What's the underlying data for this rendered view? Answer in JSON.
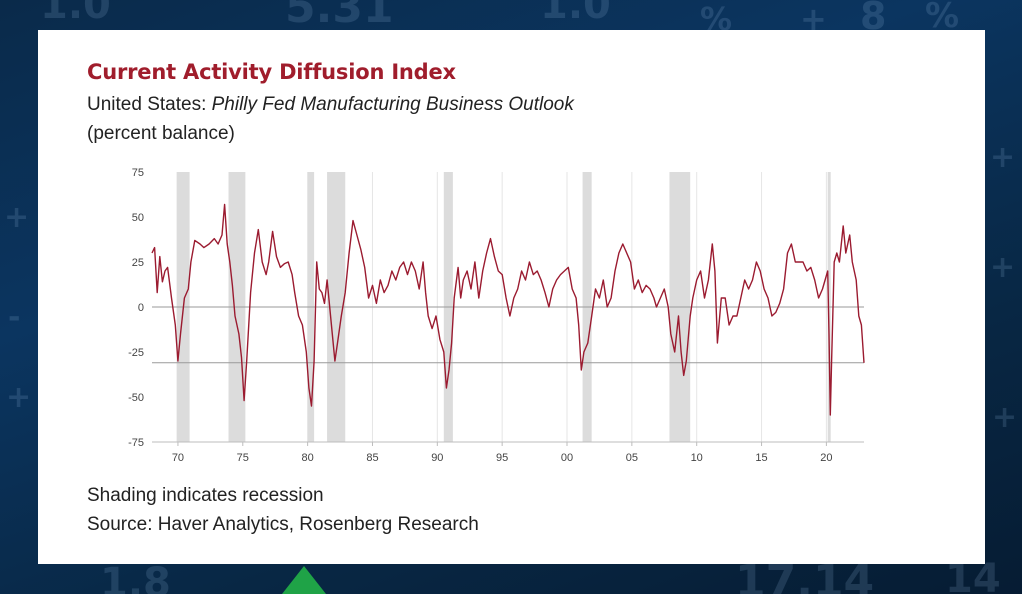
{
  "background": {
    "numbers": [
      "1.0",
      "5.31",
      "1.0",
      "%",
      "+",
      "8",
      "%",
      "+",
      "+",
      "-",
      "+",
      "+",
      "+",
      "1.8",
      "17.14",
      "14"
    ],
    "colors": {
      "base": "#0b3560",
      "green_arrow": "#1fa347"
    }
  },
  "card": {
    "title": "Current Activity Diffusion Index",
    "subtitle_prefix": "United States: ",
    "subtitle_italic": "Philly Fed Manufacturing Business Outlook",
    "units": "(percent balance)",
    "note_shading": "Shading indicates recession",
    "note_source": "Source: Haver Analytics, Rosenberg Research"
  },
  "chart_data": {
    "type": "line",
    "title": "Current Activity Diffusion Index",
    "ylabel": "(percent balance)",
    "xlim": [
      1968,
      2022.9
    ],
    "ylim": [
      -75,
      75
    ],
    "x_ticks": [
      1970,
      1975,
      1980,
      1985,
      1990,
      1995,
      2000,
      2005,
      2010,
      2015,
      2020
    ],
    "x_tick_labels": [
      "70",
      "75",
      "80",
      "85",
      "90",
      "95",
      "00",
      "05",
      "10",
      "15",
      "20"
    ],
    "y_ticks": [
      75,
      50,
      25,
      0,
      -25,
      -50,
      -75
    ],
    "y_tick_labels": [
      "75",
      "50",
      "25",
      "0",
      "-25",
      "-50",
      "-75"
    ],
    "grid": "vertical at x ticks",
    "reference_lines": [
      0,
      -31
    ],
    "recessions": [
      [
        1969.9,
        1970.9
      ],
      [
        1973.9,
        1975.2
      ],
      [
        1980.0,
        1980.5
      ],
      [
        1981.5,
        1982.9
      ],
      [
        1990.5,
        1991.2
      ],
      [
        2001.2,
        2001.9
      ],
      [
        2007.9,
        2009.5
      ],
      [
        2020.1,
        2020.3
      ]
    ],
    "series": [
      {
        "color": "#9b1b30",
        "points": [
          [
            1968.0,
            30
          ],
          [
            1968.2,
            33
          ],
          [
            1968.4,
            8
          ],
          [
            1968.6,
            28
          ],
          [
            1968.8,
            14
          ],
          [
            1969.0,
            20
          ],
          [
            1969.2,
            22
          ],
          [
            1969.5,
            5
          ],
          [
            1969.8,
            -10
          ],
          [
            1970.0,
            -30
          ],
          [
            1970.2,
            -15
          ],
          [
            1970.5,
            5
          ],
          [
            1970.8,
            10
          ],
          [
            1971.0,
            25
          ],
          [
            1971.3,
            37
          ],
          [
            1971.7,
            35
          ],
          [
            1972.0,
            33
          ],
          [
            1972.4,
            35
          ],
          [
            1972.8,
            38
          ],
          [
            1973.1,
            35
          ],
          [
            1973.4,
            40
          ],
          [
            1973.6,
            57
          ],
          [
            1973.8,
            35
          ],
          [
            1974.0,
            25
          ],
          [
            1974.2,
            12
          ],
          [
            1974.4,
            -5
          ],
          [
            1974.7,
            -15
          ],
          [
            1974.9,
            -28
          ],
          [
            1975.1,
            -52
          ],
          [
            1975.3,
            -30
          ],
          [
            1975.6,
            8
          ],
          [
            1975.9,
            30
          ],
          [
            1976.2,
            43
          ],
          [
            1976.5,
            25
          ],
          [
            1976.8,
            18
          ],
          [
            1977.0,
            25
          ],
          [
            1977.3,
            42
          ],
          [
            1977.6,
            28
          ],
          [
            1977.9,
            22
          ],
          [
            1978.2,
            24
          ],
          [
            1978.5,
            25
          ],
          [
            1978.8,
            18
          ],
          [
            1979.0,
            8
          ],
          [
            1979.3,
            -5
          ],
          [
            1979.6,
            -10
          ],
          [
            1979.9,
            -25
          ],
          [
            1980.1,
            -45
          ],
          [
            1980.3,
            -55
          ],
          [
            1980.5,
            -30
          ],
          [
            1980.7,
            25
          ],
          [
            1980.9,
            10
          ],
          [
            1981.1,
            8
          ],
          [
            1981.3,
            2
          ],
          [
            1981.5,
            15
          ],
          [
            1981.7,
            0
          ],
          [
            1981.9,
            -15
          ],
          [
            1982.1,
            -30
          ],
          [
            1982.3,
            -20
          ],
          [
            1982.6,
            -5
          ],
          [
            1982.9,
            8
          ],
          [
            1983.2,
            30
          ],
          [
            1983.5,
            48
          ],
          [
            1983.8,
            40
          ],
          [
            1984.1,
            32
          ],
          [
            1984.4,
            22
          ],
          [
            1984.7,
            5
          ],
          [
            1985.0,
            12
          ],
          [
            1985.3,
            2
          ],
          [
            1985.6,
            15
          ],
          [
            1985.9,
            8
          ],
          [
            1986.2,
            12
          ],
          [
            1986.5,
            20
          ],
          [
            1986.8,
            15
          ],
          [
            1987.1,
            22
          ],
          [
            1987.4,
            25
          ],
          [
            1987.7,
            18
          ],
          [
            1988.0,
            25
          ],
          [
            1988.3,
            20
          ],
          [
            1988.6,
            10
          ],
          [
            1988.9,
            25
          ],
          [
            1989.1,
            8
          ],
          [
            1989.3,
            -5
          ],
          [
            1989.6,
            -12
          ],
          [
            1989.9,
            -5
          ],
          [
            1990.2,
            -18
          ],
          [
            1990.5,
            -25
          ],
          [
            1990.7,
            -45
          ],
          [
            1990.9,
            -35
          ],
          [
            1991.1,
            -20
          ],
          [
            1991.3,
            5
          ],
          [
            1991.6,
            22
          ],
          [
            1991.8,
            5
          ],
          [
            1992.0,
            15
          ],
          [
            1992.3,
            20
          ],
          [
            1992.6,
            10
          ],
          [
            1992.9,
            25
          ],
          [
            1993.2,
            5
          ],
          [
            1993.5,
            20
          ],
          [
            1993.8,
            30
          ],
          [
            1994.1,
            38
          ],
          [
            1994.4,
            28
          ],
          [
            1994.7,
            20
          ],
          [
            1995.0,
            18
          ],
          [
            1995.3,
            5
          ],
          [
            1995.6,
            -5
          ],
          [
            1995.9,
            5
          ],
          [
            1996.2,
            10
          ],
          [
            1996.5,
            20
          ],
          [
            1996.8,
            15
          ],
          [
            1997.1,
            25
          ],
          [
            1997.4,
            18
          ],
          [
            1997.7,
            20
          ],
          [
            1998.0,
            15
          ],
          [
            1998.3,
            8
          ],
          [
            1998.6,
            0
          ],
          [
            1998.9,
            10
          ],
          [
            1999.2,
            15
          ],
          [
            1999.5,
            18
          ],
          [
            1999.8,
            20
          ],
          [
            2000.1,
            22
          ],
          [
            2000.4,
            10
          ],
          [
            2000.7,
            5
          ],
          [
            2000.9,
            -10
          ],
          [
            2001.1,
            -35
          ],
          [
            2001.3,
            -25
          ],
          [
            2001.6,
            -20
          ],
          [
            2001.9,
            -5
          ],
          [
            2002.2,
            10
          ],
          [
            2002.5,
            5
          ],
          [
            2002.8,
            15
          ],
          [
            2003.1,
            0
          ],
          [
            2003.4,
            5
          ],
          [
            2003.7,
            20
          ],
          [
            2004.0,
            30
          ],
          [
            2004.3,
            35
          ],
          [
            2004.6,
            30
          ],
          [
            2004.9,
            25
          ],
          [
            2005.2,
            10
          ],
          [
            2005.5,
            15
          ],
          [
            2005.8,
            8
          ],
          [
            2006.1,
            12
          ],
          [
            2006.4,
            10
          ],
          [
            2006.7,
            5
          ],
          [
            2006.9,
            0
          ],
          [
            2007.2,
            5
          ],
          [
            2007.5,
            10
          ],
          [
            2007.8,
            0
          ],
          [
            2008.0,
            -15
          ],
          [
            2008.3,
            -25
          ],
          [
            2008.6,
            -5
          ],
          [
            2008.8,
            -25
          ],
          [
            2009.0,
            -38
          ],
          [
            2009.2,
            -30
          ],
          [
            2009.5,
            -5
          ],
          [
            2009.7,
            5
          ],
          [
            2010.0,
            15
          ],
          [
            2010.3,
            20
          ],
          [
            2010.6,
            5
          ],
          [
            2010.9,
            15
          ],
          [
            2011.2,
            35
          ],
          [
            2011.4,
            20
          ],
          [
            2011.6,
            -20
          ],
          [
            2011.9,
            5
          ],
          [
            2012.2,
            5
          ],
          [
            2012.5,
            -10
          ],
          [
            2012.8,
            -5
          ],
          [
            2013.1,
            -5
          ],
          [
            2013.4,
            5
          ],
          [
            2013.7,
            15
          ],
          [
            2014.0,
            10
          ],
          [
            2014.3,
            15
          ],
          [
            2014.6,
            25
          ],
          [
            2014.9,
            20
          ],
          [
            2015.2,
            10
          ],
          [
            2015.5,
            5
          ],
          [
            2015.8,
            -5
          ],
          [
            2016.1,
            -3
          ],
          [
            2016.4,
            2
          ],
          [
            2016.7,
            10
          ],
          [
            2017.0,
            30
          ],
          [
            2017.3,
            35
          ],
          [
            2017.6,
            25
          ],
          [
            2017.9,
            25
          ],
          [
            2018.2,
            25
          ],
          [
            2018.5,
            20
          ],
          [
            2018.8,
            22
          ],
          [
            2019.1,
            15
          ],
          [
            2019.4,
            5
          ],
          [
            2019.7,
            10
          ],
          [
            2019.9,
            15
          ],
          [
            2020.1,
            20
          ],
          [
            2020.2,
            -15
          ],
          [
            2020.3,
            -60
          ],
          [
            2020.4,
            -30
          ],
          [
            2020.6,
            25
          ],
          [
            2020.8,
            30
          ],
          [
            2021.0,
            25
          ],
          [
            2021.3,
            45
          ],
          [
            2021.5,
            30
          ],
          [
            2021.8,
            40
          ],
          [
            2022.0,
            25
          ],
          [
            2022.3,
            15
          ],
          [
            2022.5,
            -5
          ],
          [
            2022.7,
            -10
          ],
          [
            2022.9,
            -31
          ]
        ]
      }
    ]
  }
}
